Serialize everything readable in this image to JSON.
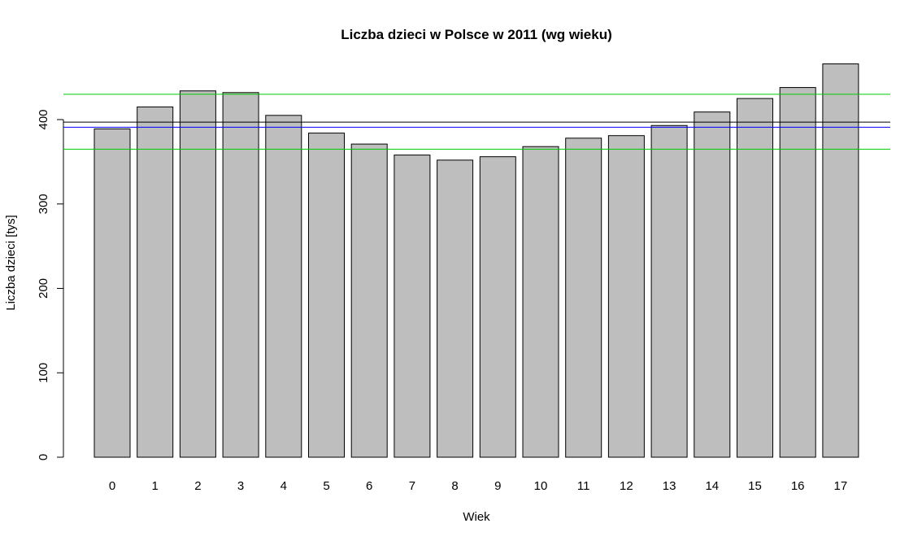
{
  "chart_data": {
    "type": "bar",
    "title": "Liczba dzieci w Polsce w 2011 (wg wieku)",
    "xlabel": "Wiek",
    "ylabel": "Liczba dzieci [tys]",
    "categories": [
      "0",
      "1",
      "2",
      "3",
      "4",
      "5",
      "6",
      "7",
      "8",
      "9",
      "10",
      "11",
      "12",
      "13",
      "14",
      "15",
      "16",
      "17"
    ],
    "values": [
      389,
      415,
      434,
      432,
      405,
      384,
      371,
      358,
      352,
      356,
      368,
      378,
      381,
      393,
      409,
      425,
      438,
      466
    ],
    "ylim": [
      0,
      466
    ],
    "yticks": [
      0,
      100,
      200,
      300,
      400
    ],
    "bar_color": "#bebebe",
    "reference_lines": [
      {
        "y": 397,
        "color": "#000000"
      },
      {
        "y": 391,
        "color": "#0000ff"
      },
      {
        "y": 430,
        "color": "#00cc00"
      },
      {
        "y": 365,
        "color": "#00cc00"
      }
    ],
    "grid": false,
    "legend": "none"
  }
}
